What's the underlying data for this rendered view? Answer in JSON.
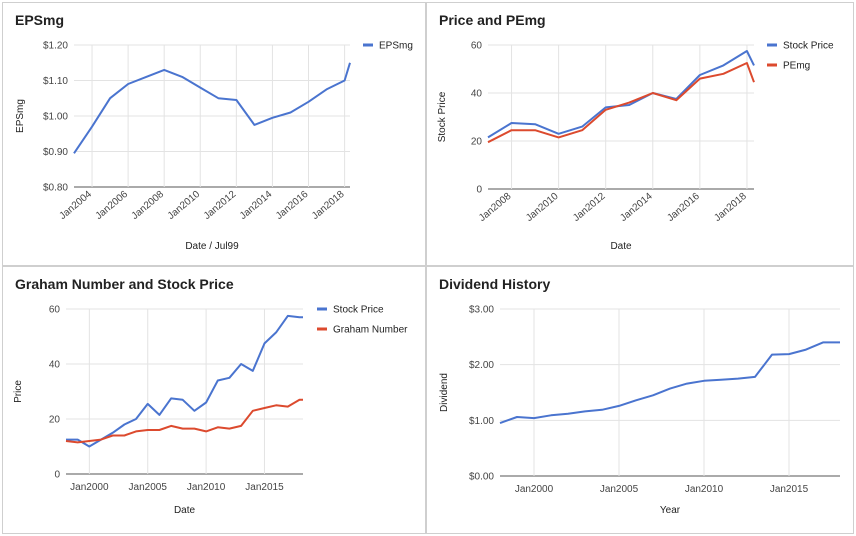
{
  "chart_data": [
    {
      "type": "line",
      "title": "EPSmg",
      "xlabel": "Date / Jul99",
      "ylabel": "EPSmg",
      "x": [
        2003,
        2004,
        2005,
        2006,
        2007,
        2008,
        2009,
        2010,
        2011,
        2012,
        2013,
        2014,
        2015,
        2016,
        2017,
        2018,
        2018.3
      ],
      "series": [
        {
          "name": "EPSmg",
          "color": "#4a74cf",
          "values": [
            0.895,
            0.97,
            1.05,
            1.09,
            1.11,
            1.13,
            1.11,
            1.08,
            1.05,
            1.045,
            0.975,
            0.995,
            1.01,
            1.04,
            1.075,
            1.1,
            1.15
          ]
        }
      ],
      "ylim": [
        0.8,
        1.2
      ],
      "yticks": [
        0.8,
        0.9,
        1.0,
        1.1,
        1.2
      ],
      "ytick_labels": [
        "$0.80",
        "$0.90",
        "$1.00",
        "$1.10",
        "$1.20"
      ],
      "xlim": [
        2003,
        2018.3
      ],
      "xticks": [
        2004,
        2006,
        2008,
        2010,
        2012,
        2014,
        2016,
        2018
      ],
      "xtick_labels": [
        "Jan2004",
        "Jan2006",
        "Jan2008",
        "Jan2010",
        "Jan2012",
        "Jan2014",
        "Jan2016",
        "Jan2018"
      ],
      "legend": "right",
      "grid": true
    },
    {
      "type": "line",
      "title": "Price and PEmg",
      "xlabel": "Date",
      "ylabel": "Stock Price",
      "x": [
        2007,
        2008,
        2009,
        2010,
        2011,
        2012,
        2013,
        2014,
        2015,
        2016,
        2017,
        2018,
        2018.3
      ],
      "series": [
        {
          "name": "Stock Price",
          "color": "#4a74cf",
          "values": [
            21.5,
            27.5,
            27,
            23,
            26,
            34,
            35,
            40,
            37.5,
            47.5,
            51.5,
            57.5,
            51.5
          ]
        },
        {
          "name": "PEmg",
          "color": "#dc4a2e",
          "values": [
            19.5,
            24.5,
            24.5,
            21.5,
            24.5,
            33,
            36,
            40,
            37,
            46,
            48,
            52.5,
            44.5
          ]
        }
      ],
      "ylim": [
        0,
        60
      ],
      "yticks": [
        0,
        20,
        40,
        60
      ],
      "ytick_labels": [
        "0",
        "20",
        "40",
        "60"
      ],
      "xlim": [
        2007,
        2018.3
      ],
      "xticks": [
        2008,
        2010,
        2012,
        2014,
        2016,
        2018
      ],
      "xtick_labels": [
        "Jan2008",
        "Jan2010",
        "Jan2012",
        "Jan2014",
        "Jan2016",
        "Jan2018"
      ],
      "legend": "right",
      "grid": true
    },
    {
      "type": "line",
      "title": "Graham Number and Stock Price",
      "xlabel": "Date",
      "ylabel": "Price",
      "x": [
        1998,
        1999,
        2000,
        2001,
        2002,
        2003,
        2004,
        2005,
        2006,
        2007,
        2008,
        2009,
        2010,
        2011,
        2012,
        2013,
        2014,
        2015,
        2016,
        2017,
        2018,
        2018.3
      ],
      "series": [
        {
          "name": "Stock Price",
          "color": "#4a74cf",
          "values": [
            12.5,
            12.5,
            10,
            12.5,
            15,
            18,
            20,
            25.5,
            21.5,
            27.5,
            27,
            23,
            26,
            34,
            35,
            40,
            37.5,
            47.5,
            51.5,
            57.5,
            57,
            57
          ]
        },
        {
          "name": "Graham Number",
          "color": "#dc4a2e",
          "values": [
            12,
            11.5,
            12,
            12.5,
            14,
            14,
            15.5,
            16,
            16,
            17.5,
            16.5,
            16.5,
            15.5,
            17,
            16.5,
            17.5,
            23,
            24,
            25,
            24.5,
            27,
            27
          ]
        }
      ],
      "ylim": [
        0,
        60
      ],
      "yticks": [
        0,
        20,
        40,
        60
      ],
      "ytick_labels": [
        "0",
        "20",
        "40",
        "60"
      ],
      "xlim": [
        1998,
        2018.3
      ],
      "xticks": [
        2000,
        2005,
        2010,
        2015
      ],
      "xtick_labels": [
        "Jan2000",
        "Jan2005",
        "Jan2010",
        "Jan2015"
      ],
      "legend": "right",
      "grid": true
    },
    {
      "type": "line",
      "title": "Dividend History",
      "xlabel": "Year",
      "ylabel": "Dividend",
      "x": [
        1998,
        1999,
        2000,
        2001,
        2002,
        2003,
        2004,
        2005,
        2006,
        2007,
        2008,
        2009,
        2010,
        2011,
        2012,
        2013,
        2014,
        2015,
        2016,
        2017,
        2018
      ],
      "series": [
        {
          "name": "Dividend",
          "color": "#4a74cf",
          "values": [
            0.95,
            1.06,
            1.04,
            1.09,
            1.12,
            1.16,
            1.19,
            1.26,
            1.36,
            1.45,
            1.57,
            1.66,
            1.71,
            1.73,
            1.75,
            1.78,
            2.18,
            2.19,
            2.27,
            2.4,
            2.4
          ]
        }
      ],
      "ylim": [
        0,
        3
      ],
      "yticks": [
        0,
        1,
        2,
        3
      ],
      "ytick_labels": [
        "$0.00",
        "$1.00",
        "$2.00",
        "$3.00"
      ],
      "xlim": [
        1998,
        2018
      ],
      "xticks": [
        2000,
        2005,
        2010,
        2015
      ],
      "xtick_labels": [
        "Jan2000",
        "Jan2005",
        "Jan2010",
        "Jan2015"
      ],
      "legend": "none",
      "grid": true
    }
  ]
}
